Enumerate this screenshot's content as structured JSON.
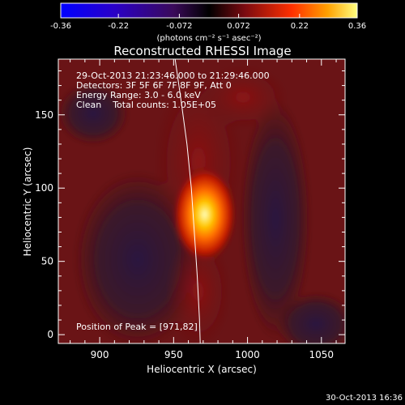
{
  "chart_data": {
    "type": "heatmap",
    "title": "Reconstructed RHESSI Image",
    "xlabel": "Heliocentric X (arcsec)",
    "ylabel": "Heliocentric Y (arcsec)",
    "xlim": [
      872,
      1066
    ],
    "ylim": [
      -6,
      188
    ],
    "x_ticks": [
      900,
      950,
      1000,
      1050
    ],
    "y_ticks": [
      0,
      50,
      100,
      150
    ],
    "colorbar": {
      "ticks": [
        -0.36,
        -0.22,
        -0.072,
        0.072,
        0.22,
        0.36
      ],
      "tick_labels": [
        "-0.36",
        "-0.22",
        "-0.072",
        "0.072",
        "0.22",
        "0.36"
      ],
      "range": [
        -0.36,
        0.36
      ],
      "unit_label": "(photons cm⁻² s⁻¹ asec⁻²)"
    },
    "annotations": [
      "29-Oct-2013 21:23:46.000 to 21:29:46.000",
      "Detectors: 3F 5F 6F 7F 8F 9F, Att 0",
      "Energy Range: 3.0 - 6.0 keV",
      "Clean    Total counts: 1.05E+05",
      "Position of Peak = [971,82]"
    ],
    "peak": {
      "x": 971,
      "y": 82,
      "value": 0.36
    },
    "limb_curve": {
      "x": [
        951,
        955,
        959,
        962,
        964,
        966,
        967.5,
        968
      ],
      "y": [
        188,
        160,
        130,
        100,
        70,
        40,
        10,
        -6
      ]
    },
    "timestamp": "30-Oct-2013 16:36",
    "grid": false
  }
}
